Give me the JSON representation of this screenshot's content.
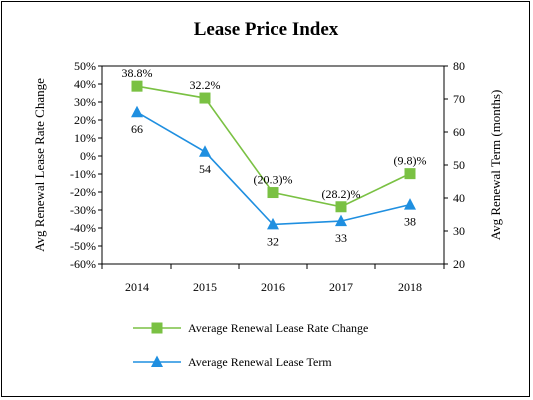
{
  "chart_data": {
    "type": "line",
    "title": "Lease Price Index",
    "categories": [
      "2014",
      "2015",
      "2016",
      "2017",
      "2018"
    ],
    "y_left": {
      "label": "Avg Renewal Lease Rate Change",
      "ticks": [
        "50%",
        "40%",
        "30%",
        "20%",
        "10%",
        "0%",
        "-10%",
        "-20%",
        "-30%",
        "-40%",
        "-50%",
        "-60%"
      ],
      "range": [
        -60,
        50
      ],
      "unit": "percent"
    },
    "y_right": {
      "label": "Avg Renewal Term (months)",
      "ticks": [
        "80",
        "70",
        "60",
        "50",
        "40",
        "30",
        "20"
      ],
      "range": [
        20,
        80
      ]
    },
    "series": [
      {
        "name": "Average Renewal Lease Rate Change",
        "axis": "left",
        "color": "#7ac143",
        "marker": "square",
        "values": [
          38.8,
          32.2,
          -20.3,
          -28.2,
          -9.8
        ],
        "labels": [
          "38.8%",
          "32.2%",
          "(20.3)%",
          "(28.2)%",
          "(9.8)%"
        ]
      },
      {
        "name": "Average Renewal Lease Term",
        "axis": "right",
        "color": "#1f8fe0",
        "marker": "triangle",
        "values": [
          66,
          54,
          32,
          33,
          38
        ],
        "labels": [
          "66",
          "54",
          "32",
          "33",
          "38"
        ]
      }
    ],
    "grid": false,
    "legend_position": "bottom"
  }
}
